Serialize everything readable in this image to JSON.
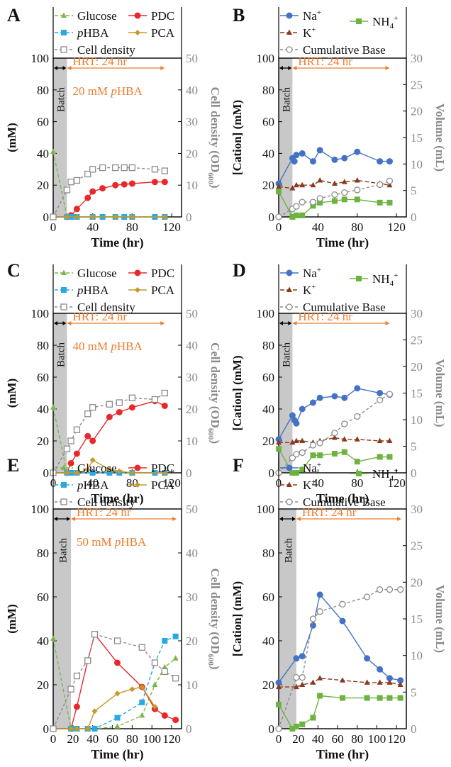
{
  "colors": {
    "glucose": "#7ab648",
    "pdc": "#e8282b",
    "phba": "#27a9e1",
    "pca": "#c69a2a",
    "cell": "#8c8c8c",
    "na": "#4472c4",
    "k": "#8b3a1f",
    "nh4": "#6db33f",
    "base": "#8c8c8c",
    "hrt": "#ed7d31",
    "batch_shade": "#c8c8c8"
  },
  "chart_data": [
    {
      "panel": "A",
      "type": "line",
      "legend": {
        "glucose": "Glucose",
        "pdc": "PDC",
        "phba_pre": "p",
        "phba_post": "HBA",
        "pca": "PCA",
        "cell": "Cell density"
      },
      "ylabel": "(mM)",
      "y2label_main": "Cell density (OD",
      "y2label_sub": "600",
      "y2label_end": ")",
      "xlabel": "Time (hr)",
      "xlim": [
        0,
        130
      ],
      "ylim": [
        0,
        100
      ],
      "y2lim": [
        0,
        50
      ],
      "xticks": [
        "0",
        "40",
        "80",
        "120"
      ],
      "yticks": [
        "0",
        "20",
        "40",
        "60",
        "80",
        "100"
      ],
      "y2ticks": [
        "0",
        "10",
        "20",
        "30",
        "40",
        "50"
      ],
      "batch_label": "Batch",
      "batch_end": 14,
      "hrt_label": "HRT: 24 hr",
      "feed_pre": "20 mM ",
      "feed_italic": "p",
      "feed_post": "HBA",
      "hrt_arrow_end": 113,
      "series": [
        {
          "key": "glucose",
          "axis": "left",
          "x": [
            0,
            14
          ],
          "y": [
            41,
            0
          ]
        },
        {
          "key": "pdc",
          "axis": "left",
          "x": [
            0,
            14,
            18,
            24,
            35,
            40,
            50,
            63,
            72,
            80,
            103,
            113
          ],
          "y": [
            0,
            0,
            1,
            5,
            12,
            16,
            18,
            20,
            20.5,
            21,
            22,
            22
          ]
        },
        {
          "key": "phba",
          "axis": "left",
          "x": [
            0,
            14,
            18,
            24,
            40,
            50,
            63,
            72,
            80,
            103,
            113
          ],
          "y": [
            0,
            0,
            0,
            0,
            0,
            0,
            0,
            0,
            0,
            0,
            0
          ]
        },
        {
          "key": "pca",
          "axis": "left",
          "x": [
            0,
            14,
            24,
            40,
            63,
            80,
            113
          ],
          "y": [
            0,
            0,
            0,
            0,
            0,
            0,
            0
          ]
        },
        {
          "key": "cell",
          "axis": "right",
          "x": [
            0,
            14,
            18,
            24,
            35,
            40,
            50,
            63,
            72,
            80,
            103,
            113
          ],
          "y": [
            0,
            8.5,
            11,
            11.5,
            13.5,
            15,
            15.5,
            15.5,
            15.5,
            15.5,
            15,
            14.5
          ]
        }
      ]
    },
    {
      "panel": "B",
      "type": "line",
      "legend": {
        "na": "Na",
        "na_sup": "+",
        "k": "K",
        "k_sup": "+",
        "nh4": "NH",
        "nh4_sub": "4",
        "nh4_sup": "+",
        "base": "Cumulative Base"
      },
      "ylabel": "[Cation] (mM)",
      "y2label": "Volume (mL)",
      "xlabel": "Time (hr)",
      "xlim": [
        0,
        130
      ],
      "ylim": [
        0,
        100
      ],
      "y2lim": [
        0,
        30
      ],
      "xticks": [
        "0",
        "40",
        "80",
        "120"
      ],
      "yticks": [
        "0",
        "20",
        "40",
        "60",
        "80",
        "100"
      ],
      "y2ticks": [
        "0",
        "5",
        "10",
        "15",
        "20",
        "25",
        "30"
      ],
      "batch_label": "Batch",
      "batch_end": 14,
      "hrt_label": "HRT: 24 hr",
      "hrt_arrow_end": 113,
      "series": [
        {
          "key": "na",
          "axis": "left",
          "x": [
            0,
            14,
            16,
            18,
            24,
            35,
            42,
            57,
            67,
            80,
            103,
            113
          ],
          "y": [
            21,
            37,
            35,
            39,
            40,
            35,
            42,
            36,
            37,
            41,
            35,
            35
          ]
        },
        {
          "key": "k",
          "axis": "left",
          "x": [
            0,
            14,
            18,
            24,
            35,
            42,
            57,
            67,
            80,
            103,
            113
          ],
          "y": [
            19,
            18,
            20,
            20,
            20,
            23,
            21,
            22,
            23,
            21,
            20
          ]
        },
        {
          "key": "nh4",
          "axis": "left",
          "x": [
            0,
            14,
            18,
            24,
            35,
            42,
            57,
            67,
            80,
            103,
            113
          ],
          "y": [
            16,
            0,
            1,
            1,
            7,
            9,
            10,
            11,
            11,
            9,
            9
          ]
        },
        {
          "key": "base",
          "axis": "right",
          "x": [
            0,
            14,
            18,
            24,
            35,
            42,
            57,
            67,
            80,
            103,
            113
          ],
          "y": [
            0,
            1.5,
            2.0,
            2.8,
            2.8,
            3.5,
            4.2,
            4.6,
            5.1,
            6.1,
            6.8
          ]
        }
      ]
    },
    {
      "panel": "C",
      "type": "line",
      "legend": {
        "glucose": "Glucose",
        "pdc": "PDC",
        "phba_pre": "p",
        "phba_post": "HBA",
        "pca": "PCA",
        "cell": "Cell density"
      },
      "ylabel": "(mM)",
      "y2label_main": "Cell density (OD",
      "y2label_sub": "600",
      "y2label_end": ")",
      "xlabel": "Time (hr)",
      "xlim": [
        0,
        130
      ],
      "ylim": [
        0,
        100
      ],
      "y2lim": [
        0,
        50
      ],
      "xticks": [
        "0",
        "40",
        "80",
        "120"
      ],
      "yticks": [
        "0",
        "20",
        "40",
        "60",
        "80",
        "100"
      ],
      "y2ticks": [
        "0",
        "10",
        "20",
        "30",
        "40",
        "50"
      ],
      "batch_label": "Batch",
      "batch_end": 14,
      "hrt_label": "HRT: 24 hr",
      "feed_pre": "40 mM ",
      "feed_italic": "p",
      "feed_post": "HBA",
      "hrt_arrow_end": 113,
      "series": [
        {
          "key": "glucose",
          "axis": "left",
          "x": [
            0,
            14
          ],
          "y": [
            41,
            0
          ]
        },
        {
          "key": "pdc",
          "axis": "left",
          "x": [
            0,
            14,
            18,
            24,
            35,
            40,
            57,
            67,
            80,
            103,
            113
          ],
          "y": [
            0,
            0,
            6,
            12,
            23,
            20,
            35,
            38,
            41,
            45,
            42
          ]
        },
        {
          "key": "phba",
          "axis": "left",
          "x": [
            0,
            14,
            18,
            24,
            40,
            57,
            67,
            80,
            103,
            113
          ],
          "y": [
            0,
            0,
            0,
            0,
            0,
            0,
            0,
            0,
            0,
            0
          ]
        },
        {
          "key": "pca",
          "axis": "left",
          "x": [
            0,
            14,
            24,
            35,
            40,
            57,
            67,
            80,
            113
          ],
          "y": [
            0,
            0,
            0,
            2,
            8,
            2,
            1,
            0,
            0
          ]
        },
        {
          "key": "cell",
          "axis": "right",
          "x": [
            0,
            14,
            18,
            24,
            35,
            40,
            57,
            67,
            80,
            103,
            113
          ],
          "y": [
            0,
            7.5,
            10,
            13.5,
            18.5,
            20.5,
            21.5,
            22,
            23.5,
            23,
            25
          ]
        }
      ]
    },
    {
      "panel": "D",
      "type": "line",
      "legend": {
        "na": "Na",
        "na_sup": "+",
        "k": "K",
        "k_sup": "+",
        "nh4": "NH",
        "nh4_sub": "4",
        "nh4_sup": "+",
        "base": "Cumulative Base"
      },
      "ylabel": "[Cation] (mM)",
      "y2label": "Volume (mL)",
      "xlabel": "Time (hr)",
      "xlim": [
        0,
        130
      ],
      "ylim": [
        0,
        100
      ],
      "y2lim": [
        0,
        30
      ],
      "xticks": [
        "0",
        "40",
        "80",
        "120"
      ],
      "yticks": [
        "0",
        "20",
        "40",
        "60",
        "80",
        "100"
      ],
      "y2ticks": [
        "0",
        "5",
        "10",
        "15",
        "20",
        "25",
        "30"
      ],
      "batch_label": "Batch",
      "batch_end": 14,
      "hrt_label": "HRT: 24 hr",
      "hrt_arrow_end": 113,
      "series": [
        {
          "key": "na",
          "axis": "left",
          "x": [
            0,
            14,
            16,
            18,
            24,
            35,
            42,
            57,
            67,
            80,
            103,
            113
          ],
          "y": [
            21,
            36,
            33,
            31,
            40,
            44,
            47,
            48,
            47,
            53,
            50,
            49
          ]
        },
        {
          "key": "k",
          "axis": "left",
          "x": [
            0,
            14,
            18,
            24,
            35,
            42,
            57,
            67,
            80,
            103,
            113
          ],
          "y": [
            19,
            19,
            20,
            20,
            19,
            20,
            22,
            21,
            21,
            20,
            20
          ]
        },
        {
          "key": "nh4",
          "axis": "left",
          "x": [
            0,
            14,
            18,
            24,
            35,
            42,
            57,
            67,
            80,
            103,
            113
          ],
          "y": [
            15,
            0,
            0,
            2,
            11,
            11,
            12,
            13,
            7,
            10,
            10
          ]
        },
        {
          "key": "base",
          "axis": "right",
          "x": [
            0,
            14,
            18,
            24,
            35,
            42,
            57,
            67,
            80,
            103,
            113
          ],
          "y": [
            0,
            2.8,
            3.5,
            3.8,
            5.2,
            5.6,
            7.5,
            9.2,
            10.6,
            13.7,
            14.8
          ]
        }
      ]
    },
    {
      "panel": "E",
      "type": "line",
      "legend": {
        "glucose": "Glucose",
        "pdc": "PDC",
        "phba_pre": "p",
        "phba_post": "HBA",
        "pca": "PCA",
        "cell": "Cell density"
      },
      "ylabel": "(mM)",
      "y2label_main": "Cell density (OD",
      "y2label_sub": "600",
      "y2label_end": ")",
      "xlabel": "Time (hr)",
      "xlim": [
        0,
        130
      ],
      "ylim": [
        0,
        100
      ],
      "y2lim": [
        0,
        50
      ],
      "xticks": [
        "0",
        "20",
        "40",
        "60",
        "80",
        "100",
        "120"
      ],
      "yticks": [
        "0",
        "20",
        "40",
        "60",
        "80",
        "100"
      ],
      "y2ticks": [
        "0",
        "10",
        "20",
        "30",
        "40",
        "50"
      ],
      "batch_label": "Batch",
      "batch_end": 18,
      "hrt_label": "HRT: 24 hr",
      "feed_pre": "50 mM ",
      "feed_italic": "p",
      "feed_post": "HBA",
      "hrt_arrow_end": 125,
      "series": [
        {
          "key": "glucose",
          "axis": "left",
          "x": [
            0,
            18,
            24,
            35,
            42,
            65,
            90,
            103,
            113,
            124
          ],
          "y": [
            41,
            0,
            0,
            0,
            0,
            1,
            6,
            20,
            28,
            32
          ]
        },
        {
          "key": "pdc",
          "axis": "left",
          "x": [
            0,
            18,
            24,
            35,
            42,
            65,
            90,
            103,
            113,
            124
          ],
          "y": [
            0,
            0,
            10,
            31,
            43,
            30,
            19,
            9,
            6,
            4
          ]
        },
        {
          "key": "phba",
          "axis": "left",
          "x": [
            0,
            18,
            24,
            35,
            42,
            65,
            90,
            103,
            113,
            124
          ],
          "y": [
            0,
            0,
            0,
            0,
            0,
            5,
            12,
            30,
            40,
            42
          ]
        },
        {
          "key": "pca",
          "axis": "left",
          "x": [
            0,
            18,
            24,
            35,
            42,
            65,
            80,
            90,
            103
          ],
          "y": [
            0,
            0,
            0,
            0,
            8,
            16,
            18,
            19,
            10
          ]
        },
        {
          "key": "cell",
          "axis": "right",
          "x": [
            0,
            18,
            24,
            35,
            42,
            65,
            90,
            103,
            113,
            124
          ],
          "y": [
            0,
            9,
            12,
            15.5,
            21.5,
            20,
            18.5,
            15,
            13,
            11.5
          ]
        }
      ]
    },
    {
      "panel": "F",
      "type": "line",
      "legend": {
        "na": "Na",
        "na_sup": "+",
        "k": "K",
        "k_sup": "+",
        "nh4": "NH",
        "nh4_sub": "4",
        "nh4_sup": "+",
        "base": "Cumulative Base"
      },
      "ylabel": "[Cation] (mM)",
      "y2label": "Volume (mL)",
      "xlabel": "Time (hr)",
      "xlim": [
        0,
        130
      ],
      "ylim": [
        0,
        100
      ],
      "y2lim": [
        0,
        30
      ],
      "xticks": [
        "0",
        "20",
        "40",
        "60",
        "80",
        "100",
        "120"
      ],
      "yticks": [
        "0",
        "20",
        "40",
        "60",
        "80",
        "100"
      ],
      "y2ticks": [
        "0",
        "5",
        "10",
        "15",
        "20",
        "25",
        "30"
      ],
      "batch_label": "Batch",
      "batch_end": 18,
      "hrt_label": "HRT: 24 hr",
      "hrt_arrow_end": 125,
      "series": [
        {
          "key": "na",
          "axis": "left",
          "x": [
            0,
            18,
            24,
            35,
            42,
            65,
            90,
            103,
            113,
            124
          ],
          "y": [
            21,
            32,
            33,
            47,
            61,
            49,
            32,
            27,
            23,
            22
          ]
        },
        {
          "key": "k",
          "axis": "left",
          "x": [
            0,
            18,
            24,
            35,
            42,
            65,
            90,
            103,
            113,
            124
          ],
          "y": [
            19,
            19,
            20,
            21,
            23,
            22,
            21,
            21,
            21,
            20
          ]
        },
        {
          "key": "nh4",
          "axis": "left",
          "x": [
            0,
            14,
            18,
            24,
            35,
            42,
            65,
            90,
            103,
            113,
            124
          ],
          "y": [
            11,
            0,
            1,
            2,
            5,
            15,
            14,
            14,
            14,
            14,
            14
          ]
        },
        {
          "key": "base",
          "axis": "right",
          "x": [
            0,
            18,
            24,
            35,
            42,
            65,
            90,
            103,
            113,
            124
          ],
          "y": [
            0,
            7,
            7,
            15,
            16,
            17,
            18,
            19,
            19,
            19
          ]
        }
      ]
    }
  ]
}
